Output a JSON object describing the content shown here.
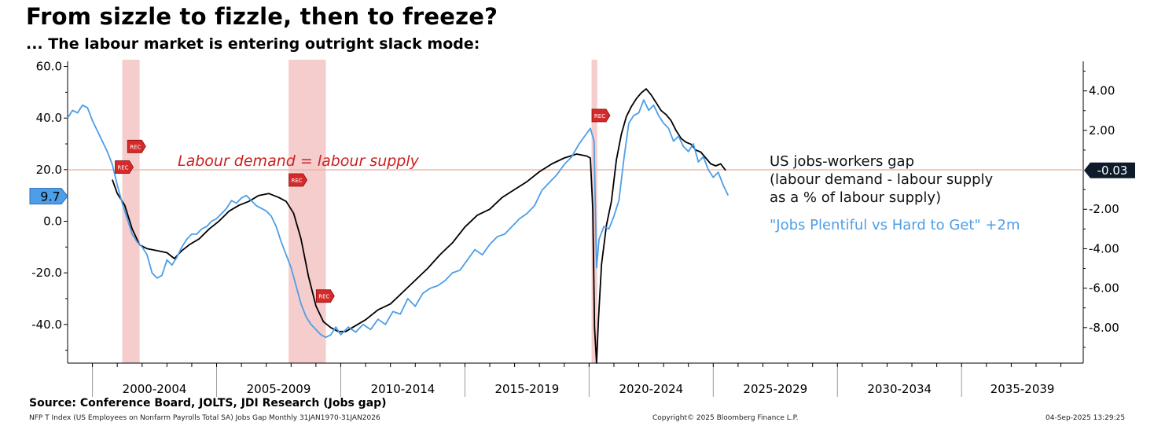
{
  "chart_data": {
    "type": "line",
    "title": "From sizzle to fizzle, then to freeze?",
    "subtitle": "... The labour market is entering outright slack mode:",
    "x_period_labels": [
      "2000-2004",
      "2005-2009",
      "2010-2014",
      "2015-2019",
      "2020-2024",
      "2025-2029",
      "2030-2034",
      "2035-2039"
    ],
    "xlim": [
      1999,
      2039.9
    ],
    "left_axis": {
      "ylim": [
        -55,
        62
      ],
      "ticks": [
        60.0,
        40.0,
        20.0,
        0.0,
        -20.0,
        -40.0
      ],
      "tick_labels": [
        "60.0",
        "40.0",
        "20.0",
        "0.0",
        "-20.0",
        "-40.0"
      ]
    },
    "right_axis": {
      "ylim": [
        -9.8,
        5.5
      ],
      "ticks": [
        4.0,
        2.0,
        -2.0,
        -4.0,
        -6.0,
        -8.0
      ],
      "tick_labels": [
        "4.00",
        "2.00",
        "-2.00",
        "-4.00",
        "-6.00",
        "-8.00"
      ]
    },
    "recessions": [
      [
        2001.2,
        2001.9
      ],
      [
        2007.9,
        2009.4
      ],
      [
        2020.1,
        2020.33
      ]
    ],
    "rec_label": "REC",
    "rec_markers": [
      {
        "x": 2001.7,
        "y": 29
      },
      {
        "x": 2001.2,
        "y": 21
      },
      {
        "x": 2008.2,
        "y": 16
      },
      {
        "x": 2009.3,
        "y": -29
      },
      {
        "x": 2020.4,
        "y": 41
      }
    ],
    "reference_line": {
      "axis": "right",
      "value": 0.0,
      "label": "Labour demand = labour supply",
      "color": "#e8b49a",
      "label_color": "#cc2020"
    },
    "series": [
      {
        "name": "US jobs-workers gap",
        "legend_lines": [
          "US jobs-workers gap",
          "(labour demand - labour supply",
          "as a % of labour supply)"
        ],
        "axis": "right",
        "color": "#000000",
        "last_value_label": "-0.03",
        "x": [
          2000.8,
          2001.0,
          2001.3,
          2001.6,
          2001.9,
          2002.2,
          2002.6,
          2003.0,
          2003.3,
          2003.6,
          2003.9,
          2004.3,
          2004.7,
          2005.1,
          2005.5,
          2005.9,
          2006.3,
          2006.7,
          2007.1,
          2007.5,
          2007.8,
          2008.1,
          2008.4,
          2008.7,
          2009.0,
          2009.3,
          2009.6,
          2009.9,
          2010.2,
          2010.6,
          2011.0,
          2011.5,
          2012.0,
          2012.5,
          2013.0,
          2013.5,
          2014.0,
          2014.5,
          2015.0,
          2015.5,
          2016.0,
          2016.5,
          2017.0,
          2017.5,
          2018.0,
          2018.5,
          2019.0,
          2019.5,
          2019.9,
          2020.05,
          2020.15,
          2020.22,
          2020.3,
          2020.38,
          2020.5,
          2020.7,
          2020.9,
          2021.1,
          2021.3,
          2021.5,
          2021.7,
          2021.9,
          2022.1,
          2022.3,
          2022.5,
          2022.7,
          2022.9,
          2023.1,
          2023.3,
          2023.5,
          2023.7,
          2023.9,
          2024.1,
          2024.3,
          2024.5,
          2024.7,
          2024.9,
          2025.1,
          2025.3,
          2025.5
        ],
        "y": [
          -0.5,
          -1.2,
          -1.8,
          -3.0,
          -3.8,
          -4.0,
          -4.1,
          -4.2,
          -4.5,
          -4.1,
          -3.8,
          -3.5,
          -3.0,
          -2.6,
          -2.1,
          -1.8,
          -1.6,
          -1.3,
          -1.2,
          -1.4,
          -1.6,
          -2.2,
          -3.5,
          -5.4,
          -6.9,
          -7.7,
          -8.0,
          -8.2,
          -8.2,
          -7.9,
          -7.6,
          -7.1,
          -6.8,
          -6.2,
          -5.6,
          -5.0,
          -4.3,
          -3.7,
          -2.9,
          -2.3,
          -2.0,
          -1.4,
          -1.0,
          -0.6,
          -0.1,
          0.3,
          0.6,
          0.8,
          0.7,
          0.6,
          -2.0,
          -8.0,
          -9.8,
          -7.5,
          -4.8,
          -2.8,
          -1.6,
          0.5,
          1.8,
          2.7,
          3.2,
          3.6,
          3.9,
          4.1,
          3.8,
          3.4,
          3.0,
          2.8,
          2.5,
          2.0,
          1.6,
          1.4,
          1.3,
          1.0,
          0.9,
          0.6,
          0.3,
          0.2,
          0.3,
          -0.03
        ]
      },
      {
        "name": "\"Jobs Plentiful vs Hard to Get\" +2m",
        "legend_lines": [
          "\"Jobs Plentiful vs Hard to Get\" +2m"
        ],
        "axis": "left",
        "color": "#4d9ee8",
        "last_value_label": "9.7",
        "x": [
          1999.0,
          1999.2,
          1999.4,
          1999.6,
          1999.8,
          2000.0,
          2000.2,
          2000.4,
          2000.6,
          2000.8,
          2001.0,
          2001.2,
          2001.4,
          2001.6,
          2001.8,
          2002.0,
          2002.2,
          2002.4,
          2002.6,
          2002.8,
          2003.0,
          2003.2,
          2003.4,
          2003.6,
          2003.8,
          2004.0,
          2004.2,
          2004.4,
          2004.6,
          2004.8,
          2005.0,
          2005.2,
          2005.4,
          2005.6,
          2005.8,
          2006.0,
          2006.2,
          2006.4,
          2006.6,
          2006.8,
          2007.0,
          2007.2,
          2007.4,
          2007.6,
          2007.8,
          2008.0,
          2008.2,
          2008.4,
          2008.6,
          2008.8,
          2009.0,
          2009.2,
          2009.4,
          2009.6,
          2009.8,
          2010.0,
          2010.3,
          2010.6,
          2010.9,
          2011.2,
          2011.5,
          2011.8,
          2012.1,
          2012.4,
          2012.7,
          2013.0,
          2013.3,
          2013.6,
          2013.9,
          2014.2,
          2014.5,
          2014.8,
          2015.1,
          2015.4,
          2015.7,
          2016.0,
          2016.3,
          2016.6,
          2016.9,
          2017.2,
          2017.5,
          2017.8,
          2018.1,
          2018.4,
          2018.7,
          2019.0,
          2019.3,
          2019.6,
          2019.9,
          2020.05,
          2020.2,
          2020.3,
          2020.4,
          2020.6,
          2020.8,
          2021.0,
          2021.2,
          2021.4,
          2021.6,
          2021.8,
          2022.0,
          2022.2,
          2022.4,
          2022.6,
          2022.8,
          2023.0,
          2023.2,
          2023.4,
          2023.6,
          2023.8,
          2024.0,
          2024.2,
          2024.4,
          2024.6,
          2024.8,
          2025.0,
          2025.2,
          2025.4,
          2025.6
        ],
        "y": [
          40,
          43,
          42,
          45,
          44,
          39,
          35,
          31,
          27,
          22,
          14,
          7,
          1,
          -5,
          -8,
          -10,
          -13,
          -20,
          -22,
          -21,
          -15,
          -17,
          -14,
          -10,
          -7,
          -5,
          -5,
          -3,
          -2,
          0,
          1,
          3,
          5,
          8,
          7,
          9,
          10,
          8,
          6,
          5,
          4,
          2,
          -2,
          -8,
          -13,
          -18,
          -25,
          -32,
          -37,
          -40,
          -42,
          -44,
          -45,
          -44,
          -41,
          -44,
          -41,
          -43,
          -40,
          -42,
          -38,
          -40,
          -35,
          -36,
          -30,
          -33,
          -28,
          -26,
          -25,
          -23,
          -20,
          -19,
          -15,
          -11,
          -13,
          -9,
          -6,
          -5,
          -2,
          1,
          3,
          6,
          12,
          15,
          18,
          22,
          25,
          30,
          34,
          36,
          31,
          -18,
          -7,
          -2,
          -3,
          2,
          8,
          24,
          38,
          41,
          42,
          47,
          43,
          45,
          41,
          38,
          36,
          31,
          33,
          29,
          27,
          30,
          23,
          25,
          20,
          17,
          19,
          14,
          10
        ]
      }
    ]
  },
  "source": "Source: Conference Board, JOLTS, JDI Research (Jobs gap)",
  "footer": {
    "left": "NFP T Index (US Employees on Nonfarm Payrolls Total SA) Jobs Gap  Monthly 31JAN1970-31JAN2026",
    "center": "Copyright© 2025 Bloomberg Finance L.P.",
    "right": "04-Sep-2025 13:29:25"
  }
}
